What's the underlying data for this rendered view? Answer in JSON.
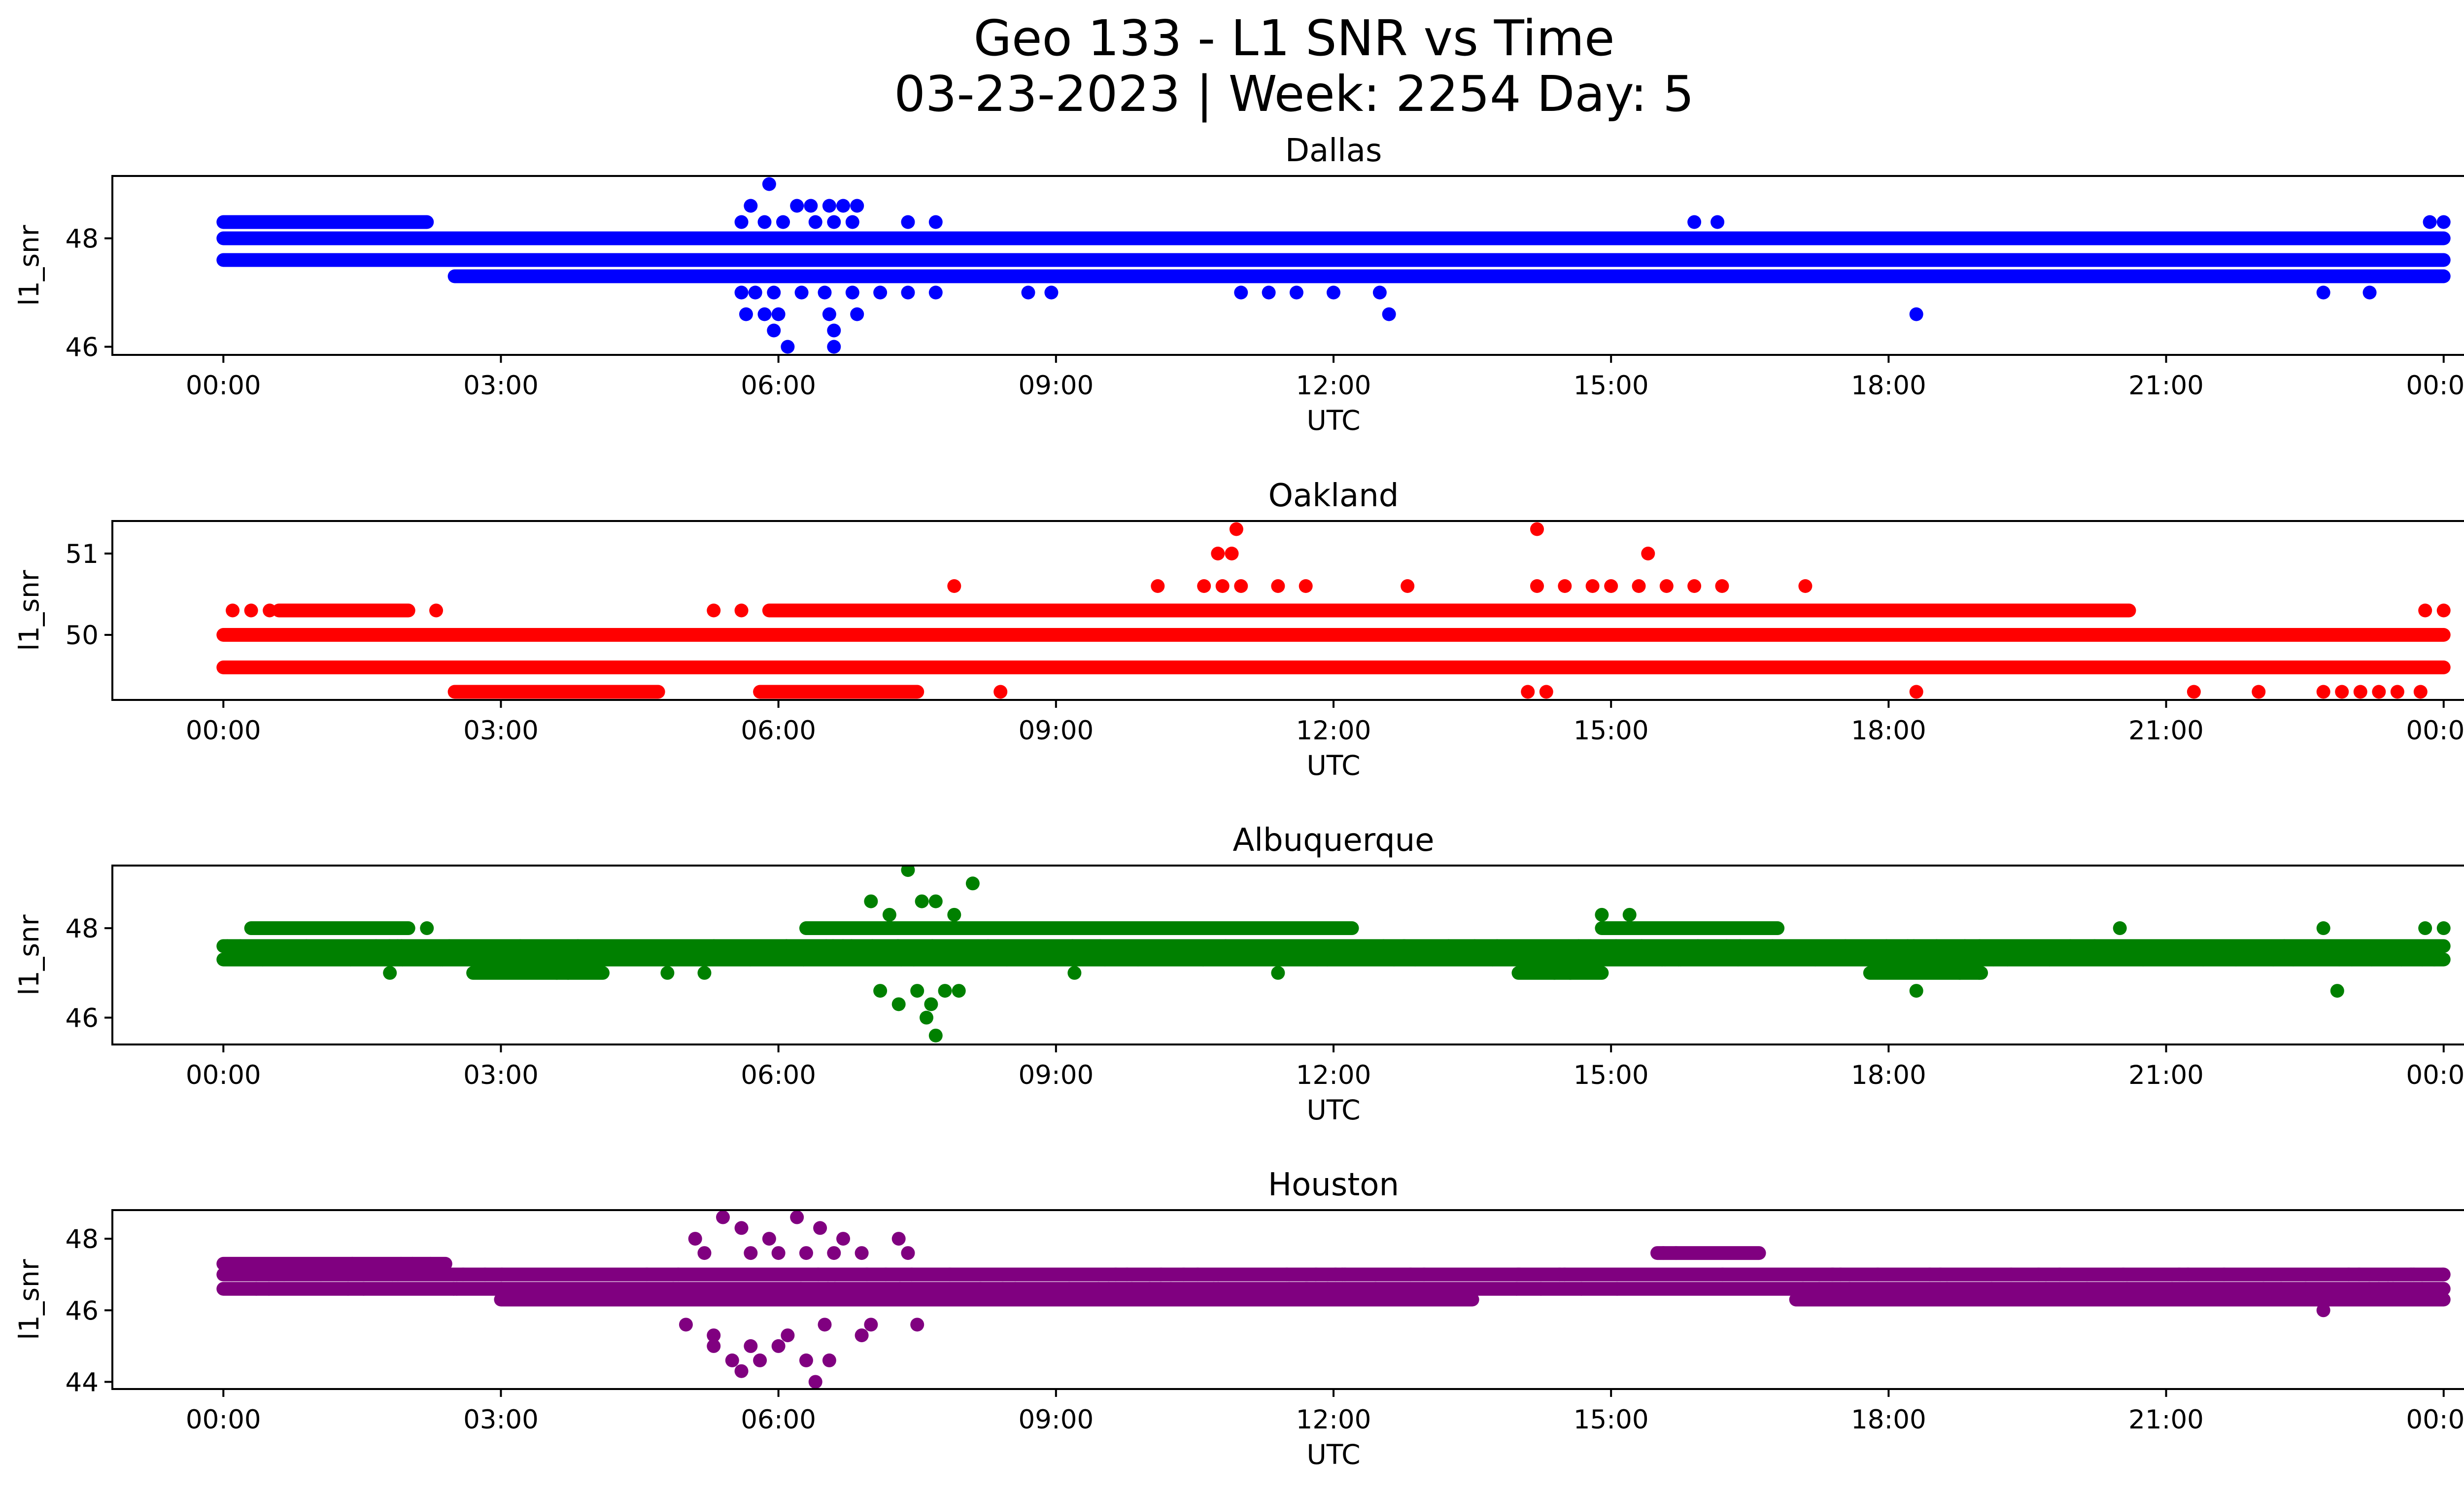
{
  "figure": {
    "title_line1": "Geo 133 - L1 SNR vs Time",
    "title_line2": "03-23-2023 | Week: 2254 Day: 5"
  },
  "chart_data": [
    {
      "type": "scatter",
      "title": "Dallas",
      "xlabel": "UTC",
      "ylabel": "l1_snr",
      "color": "#0000ff",
      "x_ticks": [
        "00:00",
        "03:00",
        "06:00",
        "09:00",
        "12:00",
        "15:00",
        "18:00",
        "21:00",
        "00:00"
      ],
      "x_tick_hours": [
        0,
        3,
        6,
        9,
        12,
        15,
        18,
        21,
        24
      ],
      "xlim_hours": [
        -1.2,
        25.2
      ],
      "ylim": [
        45.85,
        49.15
      ],
      "y_ticks": [
        46,
        48
      ],
      "series": [
        {
          "band_levels": [
            47.3,
            47.6,
            48.0
          ],
          "band_segments": [
            {
              "level": 47.6,
              "start": 0.0,
              "end": 24.0
            },
            {
              "level": 48.0,
              "start": 0.0,
              "end": 24.0
            },
            {
              "level": 47.3,
              "start": 2.5,
              "end": 24.0
            },
            {
              "level": 48.3,
              "start": 0.0,
              "end": 2.2
            }
          ],
          "outliers": [
            [
              5.9,
              49.0
            ],
            [
              5.7,
              48.6
            ],
            [
              6.2,
              48.6
            ],
            [
              6.35,
              48.6
            ],
            [
              6.55,
              48.6
            ],
            [
              6.7,
              48.6
            ],
            [
              6.85,
              48.6
            ],
            [
              5.6,
              48.3
            ],
            [
              5.85,
              48.3
            ],
            [
              6.05,
              48.3
            ],
            [
              6.4,
              48.3
            ],
            [
              6.6,
              48.3
            ],
            [
              6.8,
              48.3
            ],
            [
              7.4,
              48.3
            ],
            [
              7.7,
              48.3
            ],
            [
              5.6,
              47.0
            ],
            [
              5.75,
              47.0
            ],
            [
              5.95,
              47.0
            ],
            [
              6.25,
              47.0
            ],
            [
              6.5,
              47.0
            ],
            [
              6.8,
              47.0
            ],
            [
              7.1,
              47.0
            ],
            [
              7.4,
              47.0
            ],
            [
              7.7,
              47.0
            ],
            [
              8.7,
              47.0
            ],
            [
              8.95,
              47.0
            ],
            [
              11.0,
              47.0
            ],
            [
              11.3,
              47.0
            ],
            [
              11.6,
              47.0
            ],
            [
              12.0,
              47.0
            ],
            [
              12.5,
              47.0
            ],
            [
              22.7,
              47.0
            ],
            [
              23.2,
              47.0
            ],
            [
              5.65,
              46.6
            ],
            [
              5.85,
              46.6
            ],
            [
              6.0,
              46.6
            ],
            [
              6.55,
              46.6
            ],
            [
              6.85,
              46.6
            ],
            [
              12.6,
              46.6
            ],
            [
              18.3,
              46.6
            ],
            [
              5.95,
              46.3
            ],
            [
              6.6,
              46.3
            ],
            [
              6.1,
              46.0
            ],
            [
              6.6,
              46.0
            ],
            [
              15.9,
              48.3
            ],
            [
              16.15,
              48.3
            ],
            [
              23.85,
              48.3
            ],
            [
              24.0,
              48.3
            ]
          ]
        }
      ]
    },
    {
      "type": "scatter",
      "title": "Oakland",
      "xlabel": "UTC",
      "ylabel": "l1_snr",
      "color": "#ff0000",
      "x_ticks": [
        "00:00",
        "03:00",
        "06:00",
        "09:00",
        "12:00",
        "15:00",
        "18:00",
        "21:00",
        "00:00"
      ],
      "x_tick_hours": [
        0,
        3,
        6,
        9,
        12,
        15,
        18,
        21,
        24
      ],
      "xlim_hours": [
        -1.2,
        25.2
      ],
      "ylim": [
        49.2,
        51.4
      ],
      "y_ticks": [
        50,
        51
      ],
      "series": [
        {
          "band_levels": [
            49.6,
            50.0,
            50.3
          ],
          "band_segments": [
            {
              "level": 50.0,
              "start": 0.0,
              "end": 24.0
            },
            {
              "level": 49.6,
              "start": 0.0,
              "end": 24.0
            },
            {
              "level": 50.3,
              "start": 5.9,
              "end": 20.6
            },
            {
              "level": 50.3,
              "start": 0.6,
              "end": 2.0
            },
            {
              "level": 49.3,
              "start": 2.5,
              "end": 4.7
            },
            {
              "level": 49.3,
              "start": 5.8,
              "end": 7.5
            }
          ],
          "outliers": [
            [
              0.1,
              50.3
            ],
            [
              0.3,
              50.3
            ],
            [
              0.5,
              50.3
            ],
            [
              2.3,
              50.3
            ],
            [
              5.3,
              50.3
            ],
            [
              5.6,
              50.3
            ],
            [
              23.8,
              50.3
            ],
            [
              24.0,
              50.3
            ],
            [
              7.9,
              50.6
            ],
            [
              10.1,
              50.6
            ],
            [
              10.6,
              50.6
            ],
            [
              10.8,
              50.6
            ],
            [
              11.0,
              50.6
            ],
            [
              11.4,
              50.6
            ],
            [
              11.7,
              50.6
            ],
            [
              12.8,
              50.6
            ],
            [
              14.2,
              50.6
            ],
            [
              14.5,
              50.6
            ],
            [
              14.8,
              50.6
            ],
            [
              15.0,
              50.6
            ],
            [
              15.3,
              50.6
            ],
            [
              15.6,
              50.6
            ],
            [
              15.9,
              50.6
            ],
            [
              16.2,
              50.6
            ],
            [
              17.1,
              50.6
            ],
            [
              10.75,
              51.0
            ],
            [
              10.9,
              51.0
            ],
            [
              15.4,
              51.0
            ],
            [
              10.95,
              51.3
            ],
            [
              14.2,
              51.3
            ],
            [
              8.4,
              49.3
            ],
            [
              14.1,
              49.3
            ],
            [
              14.3,
              49.3
            ],
            [
              18.3,
              49.3
            ],
            [
              21.3,
              49.3
            ],
            [
              22.0,
              49.3
            ],
            [
              22.7,
              49.3
            ],
            [
              22.9,
              49.3
            ],
            [
              23.1,
              49.3
            ],
            [
              23.3,
              49.3
            ],
            [
              23.5,
              49.3
            ],
            [
              23.75,
              49.3
            ]
          ]
        }
      ]
    },
    {
      "type": "scatter",
      "title": "Albuquerque",
      "xlabel": "UTC",
      "ylabel": "l1_snr",
      "color": "#008000",
      "x_ticks": [
        "00:00",
        "03:00",
        "06:00",
        "09:00",
        "12:00",
        "15:00",
        "18:00",
        "21:00",
        "00:00"
      ],
      "x_tick_hours": [
        0,
        3,
        6,
        9,
        12,
        15,
        18,
        21,
        24
      ],
      "xlim_hours": [
        -1.2,
        25.2
      ],
      "ylim": [
        45.4,
        49.4
      ],
      "y_ticks": [
        46,
        48
      ],
      "series": [
        {
          "band_levels": [
            47.3,
            47.6
          ],
          "band_segments": [
            {
              "level": 47.3,
              "start": 0.0,
              "end": 24.0
            },
            {
              "level": 47.6,
              "start": 0.0,
              "end": 24.0
            },
            {
              "level": 48.0,
              "start": 0.3,
              "end": 2.0
            },
            {
              "level": 48.0,
              "start": 6.3,
              "end": 12.2
            },
            {
              "level": 48.0,
              "start": 14.9,
              "end": 16.8
            },
            {
              "level": 47.0,
              "start": 2.7,
              "end": 4.1
            },
            {
              "level": 47.0,
              "start": 14.0,
              "end": 14.9
            },
            {
              "level": 47.0,
              "start": 17.8,
              "end": 19.0
            }
          ],
          "outliers": [
            [
              7.0,
              48.6
            ],
            [
              7.2,
              48.3
            ],
            [
              7.4,
              49.3
            ],
            [
              7.55,
              48.6
            ],
            [
              7.7,
              48.6
            ],
            [
              7.9,
              48.3
            ],
            [
              8.1,
              49.0
            ],
            [
              7.1,
              46.6
            ],
            [
              7.3,
              46.3
            ],
            [
              7.5,
              46.6
            ],
            [
              7.65,
              46.3
            ],
            [
              7.7,
              45.6
            ],
            [
              7.8,
              46.6
            ],
            [
              7.95,
              46.6
            ],
            [
              7.6,
              46.0
            ],
            [
              1.8,
              47.0
            ],
            [
              2.2,
              48.0
            ],
            [
              4.8,
              47.0
            ],
            [
              5.2,
              47.0
            ],
            [
              9.2,
              47.0
            ],
            [
              11.4,
              47.0
            ],
            [
              14.9,
              48.3
            ],
            [
              15.2,
              48.3
            ],
            [
              18.3,
              46.6
            ],
            [
              20.5,
              48.0
            ],
            [
              22.7,
              48.0
            ],
            [
              22.85,
              46.6
            ],
            [
              23.8,
              48.0
            ],
            [
              24.0,
              48.0
            ]
          ]
        }
      ]
    },
    {
      "type": "scatter",
      "title": "Houston",
      "xlabel": "UTC",
      "ylabel": "l1_snr",
      "color": "#800080",
      "x_ticks": [
        "00:00",
        "03:00",
        "06:00",
        "09:00",
        "12:00",
        "15:00",
        "18:00",
        "21:00",
        "00:00"
      ],
      "x_tick_hours": [
        0,
        3,
        6,
        9,
        12,
        15,
        18,
        21,
        24
      ],
      "xlim_hours": [
        -1.2,
        25.2
      ],
      "ylim": [
        43.8,
        48.8
      ],
      "y_ticks": [
        44,
        46,
        48
      ],
      "series": [
        {
          "band_levels": [
            46.6,
            47.0
          ],
          "band_segments": [
            {
              "level": 47.0,
              "start": 0.0,
              "end": 24.0
            },
            {
              "level": 46.6,
              "start": 0.0,
              "end": 24.0
            },
            {
              "level": 47.3,
              "start": 0.0,
              "end": 2.4
            },
            {
              "level": 46.3,
              "start": 3.0,
              "end": 13.5
            },
            {
              "level": 47.6,
              "start": 15.5,
              "end": 16.6
            },
            {
              "level": 46.3,
              "start": 17.0,
              "end": 24.0
            }
          ],
          "outliers": [
            [
              5.1,
              48.0
            ],
            [
              5.4,
              48.6
            ],
            [
              5.6,
              48.3
            ],
            [
              5.9,
              48.0
            ],
            [
              6.2,
              48.6
            ],
            [
              6.45,
              48.3
            ],
            [
              6.7,
              48.0
            ],
            [
              7.3,
              48.0
            ],
            [
              5.3,
              45.0
            ],
            [
              5.5,
              44.6
            ],
            [
              5.6,
              44.3
            ],
            [
              5.8,
              44.6
            ],
            [
              6.0,
              45.0
            ],
            [
              6.3,
              44.6
            ],
            [
              6.4,
              44.0
            ],
            [
              6.55,
              44.6
            ],
            [
              6.9,
              45.3
            ],
            [
              5.0,
              45.6
            ],
            [
              5.3,
              45.3
            ],
            [
              5.7,
              45.0
            ],
            [
              6.1,
              45.3
            ],
            [
              6.5,
              45.6
            ],
            [
              7.0,
              45.6
            ],
            [
              7.5,
              45.6
            ],
            [
              5.2,
              47.6
            ],
            [
              5.7,
              47.6
            ],
            [
              6.0,
              47.6
            ],
            [
              6.3,
              47.6
            ],
            [
              6.6,
              47.6
            ],
            [
              6.9,
              47.6
            ],
            [
              7.4,
              47.6
            ],
            [
              22.7,
              46.0
            ]
          ]
        }
      ]
    }
  ]
}
